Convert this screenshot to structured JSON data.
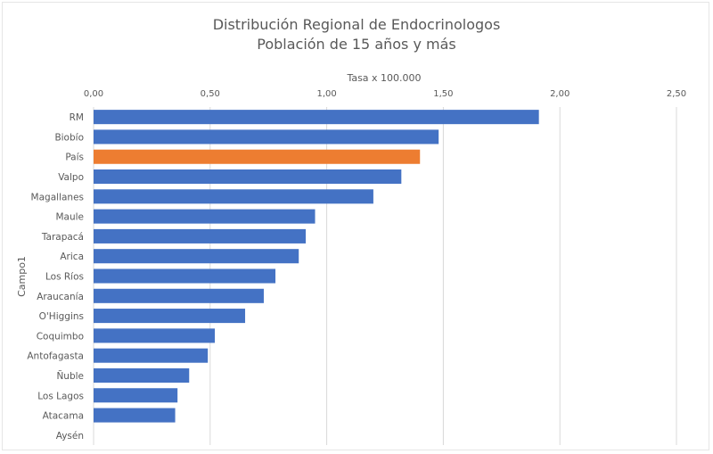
{
  "chart_data": {
    "type": "bar",
    "orientation": "horizontal",
    "title": "Distribución Regional de Endocrinologos",
    "subtitle": "Población de 15 años y más",
    "xlabel": "Tasa x 100.000",
    "ylabel": "Campo1",
    "xlim": [
      0,
      2.5
    ],
    "x_ticks": [
      0,
      0.5,
      1.0,
      1.5,
      2.0,
      2.5
    ],
    "x_tick_labels": [
      "0,00",
      "0,50",
      "1,00",
      "1,50",
      "2,00",
      "2,50"
    ],
    "x_axis_position": "top",
    "grid": true,
    "legend": "none",
    "categories": [
      "RM",
      "Biobío",
      "País",
      "Valpo",
      "Magallanes",
      "Maule",
      "Tarapacá",
      "Arica",
      "Los Ríos",
      "Araucanía",
      "O'Higgins",
      "Coquimbo",
      "Antofagasta",
      "Ñuble",
      "Los Lagos",
      "Atacama",
      "Aysén"
    ],
    "values": [
      1.91,
      1.48,
      1.4,
      1.32,
      1.2,
      0.95,
      0.91,
      0.88,
      0.78,
      0.73,
      0.65,
      0.52,
      0.49,
      0.41,
      0.36,
      0.35,
      0.0
    ],
    "colors": {
      "default": "#4472c4",
      "highlight": "#ed7d31",
      "highlight_category": "País"
    }
  }
}
